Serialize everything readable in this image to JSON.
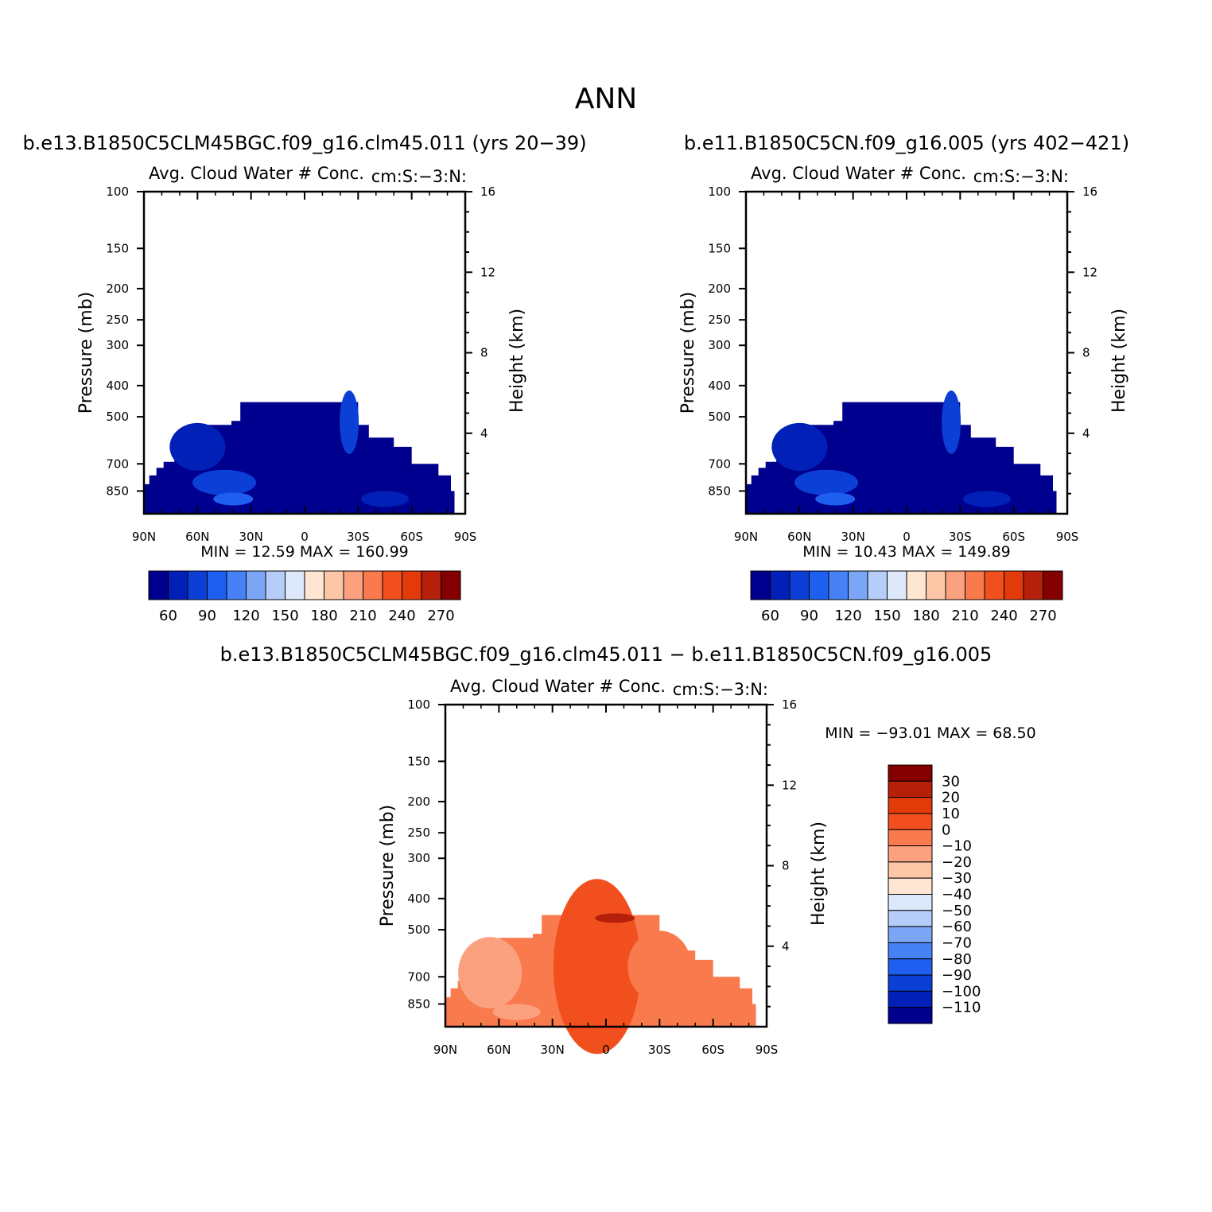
{
  "figure": {
    "title": "ANN",
    "diff_case_title": "b.e13.B1850C5CLM45BGC.f09_g16.clm45.011 − b.e11.B1850C5CN.f09_g16.005"
  },
  "colors": {
    "seq": [
      "#00008f",
      "#0020b8",
      "#0c3fd6",
      "#1f5ff0",
      "#4682f5",
      "#7aa6f5",
      "#b5cdf8",
      "#dde9fb",
      "#ffe6d3",
      "#fdc6a6",
      "#fca180",
      "#f97a4d",
      "#f24f1f",
      "#e33a0a",
      "#b6200a",
      "#840000"
    ],
    "diff": [
      "#00008f",
      "#0020b8",
      "#0c3fd6",
      "#1f5ff0",
      "#4682f5",
      "#7aa6f5",
      "#b5cdf8",
      "#dde9fb",
      "#ffe6d3",
      "#fdc6a6",
      "#fca180",
      "#f97a4d",
      "#f24f1f",
      "#e33a0a",
      "#b6200a",
      "#840000"
    ]
  },
  "chart_data": [
    {
      "type": "heatmap",
      "case_title": "b.e13.B1850C5CLM45BGC.f09_g16.clm45.011 (yrs 20−39)",
      "title": "Avg. Cloud Water # Conc.",
      "units_label": "cm:S:−3:N:",
      "xlabel": "",
      "ylabel": "Pressure (mb)",
      "ylabel_right": "Height (km)",
      "x_ticks": [
        "90N",
        "60N",
        "30N",
        "0",
        "30S",
        "60S",
        "90S"
      ],
      "y_ticks": [
        100,
        150,
        200,
        250,
        300,
        400,
        500,
        700,
        850
      ],
      "y_ticks_right": [
        16,
        12,
        8,
        4
      ],
      "ylim": [
        1000,
        100
      ],
      "min_label": "MIN =",
      "min_value": "12.59",
      "max_label": "MAX =",
      "max_value": "160.99",
      "colorbar_labels": [
        "60",
        "90",
        "120",
        "150",
        "180",
        "210",
        "240",
        "270"
      ],
      "field_profile": [
        {
          "lat": 90,
          "p_top": 810
        },
        {
          "lat": 87,
          "p_top": 760
        },
        {
          "lat": 83,
          "p_top": 720
        },
        {
          "lat": 79,
          "p_top": 690
        },
        {
          "lat": 73,
          "p_top": 640
        },
        {
          "lat": 67,
          "p_top": 600
        },
        {
          "lat": 60,
          "p_top": 530
        },
        {
          "lat": 42,
          "p_top": 530
        },
        {
          "lat": 41,
          "p_top": 515
        },
        {
          "lat": 36,
          "p_top": 450
        },
        {
          "lat": 10,
          "p_top": 450
        },
        {
          "lat": 9,
          "p_top": 450
        },
        {
          "lat": -30,
          "p_top": 530
        },
        {
          "lat": -36,
          "p_top": 580
        },
        {
          "lat": -50,
          "p_top": 620
        },
        {
          "lat": -60,
          "p_top": 700
        },
        {
          "lat": -75,
          "p_top": 760
        },
        {
          "lat": -82,
          "p_top": 850
        },
        {
          "lat": -84,
          "p_top": 960
        }
      ]
    },
    {
      "type": "heatmap",
      "case_title": "b.e11.B1850C5CN.f09_g16.005 (yrs 402−421)",
      "title": "Avg. Cloud Water # Conc.",
      "units_label": "cm:S:−3:N:",
      "xlabel": "",
      "ylabel": "Pressure (mb)",
      "ylabel_right": "Height (km)",
      "x_ticks": [
        "90N",
        "60N",
        "30N",
        "0",
        "30S",
        "60S",
        "90S"
      ],
      "y_ticks": [
        100,
        150,
        200,
        250,
        300,
        400,
        500,
        700,
        850
      ],
      "y_ticks_right": [
        16,
        12,
        8,
        4
      ],
      "ylim": [
        1000,
        100
      ],
      "min_label": "MIN =",
      "min_value": "10.43",
      "max_label": "MAX =",
      "max_value": "149.89",
      "colorbar_labels": [
        "60",
        "90",
        "120",
        "150",
        "180",
        "210",
        "240",
        "270"
      ],
      "field_profile": [
        {
          "lat": 90,
          "p_top": 810
        },
        {
          "lat": 87,
          "p_top": 760
        },
        {
          "lat": 83,
          "p_top": 720
        },
        {
          "lat": 79,
          "p_top": 690
        },
        {
          "lat": 73,
          "p_top": 640
        },
        {
          "lat": 67,
          "p_top": 600
        },
        {
          "lat": 60,
          "p_top": 530
        },
        {
          "lat": 42,
          "p_top": 530
        },
        {
          "lat": 41,
          "p_top": 515
        },
        {
          "lat": 36,
          "p_top": 450
        },
        {
          "lat": 10,
          "p_top": 450
        },
        {
          "lat": 9,
          "p_top": 450
        },
        {
          "lat": -30,
          "p_top": 530
        },
        {
          "lat": -36,
          "p_top": 580
        },
        {
          "lat": -50,
          "p_top": 620
        },
        {
          "lat": -60,
          "p_top": 700
        },
        {
          "lat": -75,
          "p_top": 760
        },
        {
          "lat": -82,
          "p_top": 850
        },
        {
          "lat": -84,
          "p_top": 960
        }
      ]
    },
    {
      "type": "heatmap",
      "title": "Avg. Cloud Water # Conc.",
      "units_label": "cm:S:−3:N:",
      "xlabel": "",
      "ylabel": "Pressure (mb)",
      "ylabel_right": "Height (km)",
      "x_ticks": [
        "90N",
        "60N",
        "30N",
        "0",
        "30S",
        "60S",
        "90S"
      ],
      "y_ticks": [
        100,
        150,
        200,
        250,
        300,
        400,
        500,
        700,
        850
      ],
      "y_ticks_right": [
        16,
        12,
        8,
        4
      ],
      "ylim": [
        1000,
        100
      ],
      "min_label": "MIN =",
      "min_value": "−93.01",
      "max_label": "MAX =",
      "max_value": "68.50",
      "colorbar_labels": [
        "30",
        "20",
        "10",
        "0",
        "−10",
        "−20",
        "−30",
        "−40",
        "−50",
        "−60",
        "−70",
        "−80",
        "−90",
        "−100",
        "−110"
      ],
      "field_profile": [
        {
          "lat": 90,
          "p_top": 810
        },
        {
          "lat": 87,
          "p_top": 760
        },
        {
          "lat": 83,
          "p_top": 720
        },
        {
          "lat": 79,
          "p_top": 690
        },
        {
          "lat": 73,
          "p_top": 640
        },
        {
          "lat": 67,
          "p_top": 600
        },
        {
          "lat": 60,
          "p_top": 530
        },
        {
          "lat": 42,
          "p_top": 530
        },
        {
          "lat": 41,
          "p_top": 515
        },
        {
          "lat": 36,
          "p_top": 450
        },
        {
          "lat": 10,
          "p_top": 450
        },
        {
          "lat": 9,
          "p_top": 450
        },
        {
          "lat": -30,
          "p_top": 530
        },
        {
          "lat": -36,
          "p_top": 580
        },
        {
          "lat": -50,
          "p_top": 620
        },
        {
          "lat": -60,
          "p_top": 700
        },
        {
          "lat": -75,
          "p_top": 760
        },
        {
          "lat": -82,
          "p_top": 850
        },
        {
          "lat": -84,
          "p_top": 960
        }
      ]
    }
  ]
}
